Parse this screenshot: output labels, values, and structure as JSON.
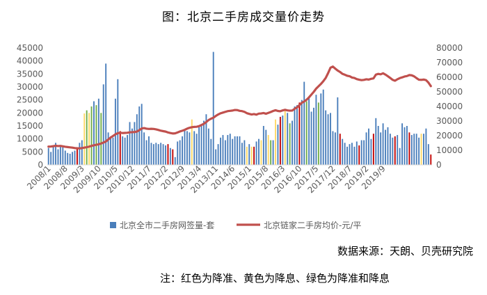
{
  "title": "图：北京二手房成交量价走势",
  "source": "数据来源：天朗、贝壳研究院",
  "note": "注：红色为降准、黄色为降息、绿色为降准和降息",
  "colors": {
    "bar": "#4a7ebb",
    "cut_rrr": "#c00000",
    "cut_rate": "#ffd966",
    "both": "#70ad47",
    "line": "#c0504d",
    "axis": "#d9d9d9"
  },
  "chart_data": {
    "type": "bar+line",
    "x_tick_labels": [
      "2008/1",
      "2008/8",
      "2009/3",
      "2009/10",
      "2010/5",
      "2010/12",
      "2011/7",
      "2012/2",
      "2012/9",
      "2013/4",
      "2013/11",
      "2014/6",
      "2015/1",
      "2015/8",
      "2016/3",
      "2016/10",
      "2017/5",
      "2017/12",
      "2018/7",
      "2019/2",
      "2019/9"
    ],
    "y_left": {
      "lim": [
        0,
        45000
      ],
      "ticks": [
        "0",
        "5000",
        "10000",
        "15000",
        "20000",
        "25000",
        "30000",
        "35000",
        "40000",
        "45000"
      ]
    },
    "y_right": {
      "lim": [
        0,
        80000
      ],
      "ticks": [
        "0",
        "10000",
        "20000",
        "30000",
        "40000",
        "50000",
        "60000",
        "70000",
        "80000"
      ]
    },
    "series": [
      {
        "name": "北京全市二手房网签量-套",
        "kind": "bar",
        "axis": "left",
        "values": [
          6500,
          5000,
          7000,
          8500,
          6000,
          7500,
          6800,
          5500,
          4600,
          4300,
          5000,
          5500,
          6500,
          8500,
          9500,
          19800,
          21000,
          20000,
          22500,
          24500,
          23000,
          25500,
          20000,
          31000,
          39000,
          12500,
          11000,
          10500,
          25500,
          33000,
          13000,
          11000,
          10500,
          11500,
          16500,
          14000,
          16500,
          19500,
          22500,
          23500,
          12500,
          9500,
          11000,
          8500,
          8000,
          8500,
          8000,
          8500,
          8000,
          7500,
          8000,
          6500,
          6000,
          3000,
          9000,
          9500,
          11000,
          13500,
          13000,
          12500,
          17500,
          13000,
          12000,
          14500,
          15000,
          17000,
          19500,
          14000,
          10000,
          43500,
          6000,
          8000,
          10500,
          11500,
          9500,
          11500,
          12000,
          10000,
          11000,
          11000,
          11000,
          8500,
          9500,
          7000,
          8000,
          7000,
          7000,
          9000,
          10000,
          9500,
          15000,
          13500,
          11500,
          9500,
          9500,
          17500,
          15500,
          18500,
          19000,
          21000,
          20000,
          16000,
          17000,
          22500,
          23000,
          24000,
          25000,
          32000,
          24500,
          26000,
          20500,
          22000,
          27000,
          24000,
          27500,
          29000,
          21000,
          19500,
          20000,
          13000,
          12500,
          26000,
          12000,
          10000,
          8500,
          7000,
          8000,
          8500,
          7000,
          9000,
          7500,
          9500,
          9500,
          12500,
          14000,
          10000,
          12000,
          18000,
          15000,
          12500,
          16000,
          13500,
          14500,
          12000,
          10500,
          11000,
          11500,
          6500,
          16000,
          14500,
          15000,
          12500,
          11500,
          12000,
          12000,
          10500,
          12000,
          12000,
          14000,
          8000,
          4000
        ],
        "colors_note": "柱色：红色为降准、黄色为降息、绿色为降准和降息"
      },
      {
        "name": "北京链家二手房均价-元/平",
        "kind": "line",
        "axis": "right",
        "values": [
          12500,
          12600,
          12800,
          13100,
          12900,
          13000,
          12700,
          12400,
          12200,
          12000,
          11800,
          11500,
          11400,
          11300,
          11500,
          11800,
          12100,
          12500,
          13000,
          13400,
          13800,
          14100,
          14600,
          15300,
          16000,
          17400,
          18700,
          19800,
          20900,
          21700,
          22000,
          21800,
          21900,
          22000,
          22300,
          22400,
          22500,
          22800,
          23800,
          24900,
          25200,
          24800,
          24600,
          24700,
          24600,
          24300,
          23900,
          23400,
          23100,
          22800,
          22200,
          21800,
          21500,
          21600,
          22200,
          22900,
          23400,
          24000,
          24800,
          25400,
          25800,
          26000,
          26100,
          26500,
          27300,
          28100,
          29300,
          30700,
          31600,
          32300,
          33500,
          34500,
          35300,
          35800,
          36300,
          36800,
          37000,
          37200,
          37600,
          37500,
          37000,
          36800,
          36300,
          35400,
          34900,
          34500,
          34800,
          34400,
          35100,
          35200,
          35500,
          35000,
          35600,
          36200,
          36900,
          37400,
          36900,
          36700,
          37300,
          37700,
          37300,
          37100,
          37200,
          38400,
          39400,
          40900,
          42500,
          43400,
          44600,
          46200,
          48100,
          50000,
          52200,
          53800,
          55400,
          57300,
          59500,
          62800,
          66500,
          67300,
          65900,
          64600,
          63600,
          62300,
          61700,
          61000,
          60700,
          59800,
          59500,
          58700,
          58300,
          58000,
          58200,
          58600,
          58400,
          58900,
          59200,
          61800,
          62300,
          62000,
          62700,
          61800,
          60700,
          59500,
          58200,
          57600,
          58600,
          59400,
          59900,
          60500,
          60800,
          61500,
          61300,
          60600,
          59400,
          58300,
          58200,
          58400,
          58000,
          56300,
          53900
        ],
        "color": "#c0504d"
      }
    ]
  }
}
